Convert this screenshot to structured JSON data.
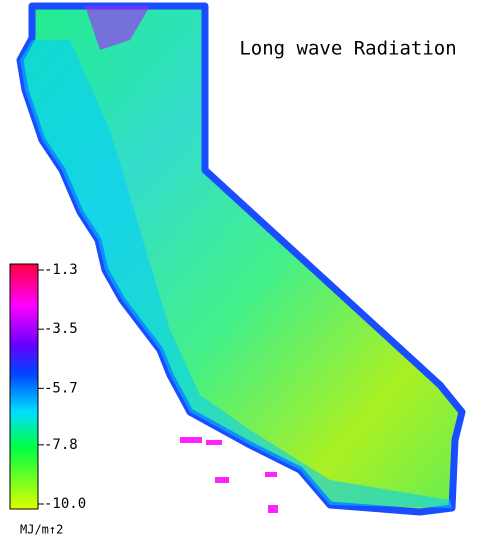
{
  "title": "Long wave Radiation",
  "legend": {
    "ticks": [
      -1.3,
      -3.5,
      -5.7,
      -7.8,
      {
        "value": -10,
        "label": "-10.0"
      }
    ],
    "unit": "MJ/m↑2"
  }
}
